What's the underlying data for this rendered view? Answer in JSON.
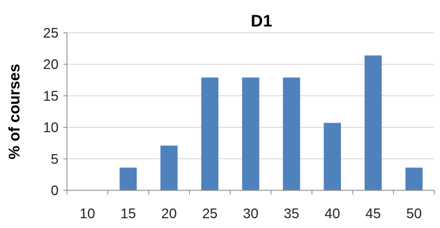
{
  "chart_data": {
    "type": "bar",
    "title": "D1",
    "xlabel": "",
    "ylabel": "% of courses",
    "categories": [
      "10",
      "15",
      "20",
      "25",
      "30",
      "35",
      "40",
      "45",
      "50"
    ],
    "values": [
      0,
      3.6,
      7.1,
      17.9,
      17.9,
      17.9,
      10.7,
      21.4,
      3.6
    ],
    "ylim": [
      0,
      25
    ],
    "yticks": [
      "0",
      "5",
      "10",
      "15",
      "20",
      "25"
    ],
    "grid": true,
    "legend": "none",
    "bar_color": "#4f81bd"
  }
}
